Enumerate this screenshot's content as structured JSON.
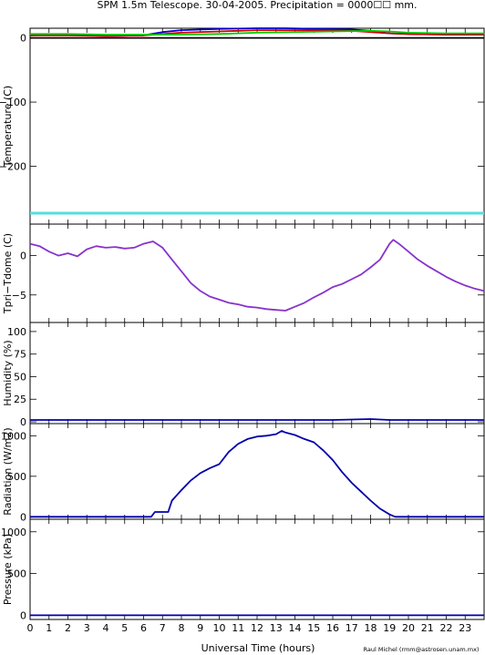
{
  "chart_data": {
    "type": "line",
    "title": "SPM 1.5m Telescope. 30-04-2005. Precipitation = 0000☐☐ mm.",
    "xlabel": "Universal Time (hours)",
    "credit": "Raul Michel (rmm@astrosen.unam.mx)",
    "xlim": [
      0,
      24
    ],
    "x_ticks": [
      "0",
      "1",
      "2",
      "3",
      "4",
      "5",
      "6",
      "7",
      "8",
      "9",
      "10",
      "11",
      "12",
      "13",
      "14",
      "15",
      "16",
      "17",
      "18",
      "19",
      "20",
      "21",
      "22",
      "23"
    ],
    "panels": [
      {
        "id": "temperature",
        "ylabel": "Temperature (C)",
        "ylim": [
          -290,
          15
        ],
        "y_ticks": [
          0,
          -100,
          -200
        ],
        "y_tick_labels": [
          "0",
          "−100",
          "−200"
        ],
        "series": [
          {
            "color": "#0000cc",
            "x": [
              0,
              2,
              4,
              6,
              7,
              8,
              10,
              12,
              13.5,
              15,
              17,
              18,
              19,
              20,
              22,
              24
            ],
            "y": [
              4,
              5,
              3,
              4,
              9,
              12,
              14,
              15,
              15,
              14,
              13,
              11,
              7,
              6,
              5,
              5
            ]
          },
          {
            "color": "#cc0000",
            "x": [
              0,
              2,
              4,
              6,
              7,
              8,
              10,
              12,
              13.5,
              15,
              17,
              18,
              19,
              20,
              22,
              24
            ],
            "y": [
              4,
              4,
              3,
              4,
              6,
              8,
              10,
              12,
              12,
              12,
              11,
              9,
              7,
              6,
              5,
              5
            ]
          },
          {
            "color": "#00cc00",
            "x": [
              0,
              2,
              4,
              6,
              7,
              8,
              10,
              12,
              14,
              16,
              18,
              19,
              20,
              22,
              24
            ],
            "y": [
              6,
              6,
              5,
              5,
              5,
              5,
              6,
              8,
              9,
              10,
              11,
              10,
              8,
              7,
              7
            ]
          },
          {
            "color": "#000000",
            "x": [
              0,
              24
            ],
            "y": [
              0,
              0
            ]
          },
          {
            "color": "#55dddd",
            "x": [
              0,
              24
            ],
            "y": [
              -273,
              -273
            ]
          }
        ]
      },
      {
        "id": "tpri-tdome",
        "ylabel": "Tpri−Tdome (C)",
        "ylim": [
          -8.5,
          4
        ],
        "y_ticks": [
          0,
          -5
        ],
        "y_tick_labels": [
          "0",
          "−5"
        ],
        "series": [
          {
            "color": "#8833cc",
            "x": [
              0,
              0.5,
              1,
              1.5,
              2,
              2.5,
              3,
              3.5,
              4,
              4.5,
              5,
              5.5,
              6,
              6.5,
              7,
              7.5,
              8,
              8.5,
              9,
              9.5,
              10,
              10.5,
              11,
              11.5,
              12,
              12.5,
              13,
              13.5,
              14,
              14.5,
              15,
              15.5,
              16,
              16.5,
              17,
              17.5,
              18,
              18.5,
              19,
              19.2,
              19.5,
              20,
              20.5,
              21,
              21.5,
              22,
              22.5,
              23,
              23.5,
              24
            ],
            "y": [
              1.5,
              1.2,
              0.5,
              0,
              0.3,
              -0.1,
              0.8,
              1.2,
              1.0,
              1.1,
              0.9,
              1.0,
              1.5,
              1.8,
              1.0,
              -0.5,
              -2.0,
              -3.5,
              -4.5,
              -5.2,
              -5.6,
              -6.0,
              -6.2,
              -6.5,
              -6.6,
              -6.8,
              -6.9,
              -7.0,
              -6.5,
              -6.0,
              -5.3,
              -4.7,
              -4.0,
              -3.6,
              -3.0,
              -2.4,
              -1.5,
              -0.5,
              1.5,
              2.0,
              1.5,
              0.5,
              -0.5,
              -1.3,
              -2.0,
              -2.7,
              -3.3,
              -3.8,
              -4.2,
              -4.5
            ]
          }
        ]
      },
      {
        "id": "humidity",
        "ylabel": "Humidity (%)",
        "ylim": [
          -2,
          110
        ],
        "y_ticks": [
          0,
          25,
          50,
          75,
          100
        ],
        "y_tick_labels": [
          "0",
          "25",
          "50",
          "75",
          "100"
        ],
        "series": [
          {
            "color": "#0000aa",
            "x": [
              0,
              4,
              8,
              12,
              16,
              18,
              19,
              20,
              24
            ],
            "y": [
              2,
              2,
              2,
              2,
              2,
              3,
              2,
              2,
              2
            ]
          }
        ]
      },
      {
        "id": "radiation",
        "ylabel": "Radiation (W/m2)",
        "ylim": [
          -30,
          1150
        ],
        "y_ticks": [
          0,
          500,
          1000
        ],
        "y_tick_labels": [
          "0",
          "500",
          "1000"
        ],
        "series": [
          {
            "color": "#0000aa",
            "x": [
              0,
              6.4,
              6.6,
              7.3,
              7.5,
              8.0,
              8.5,
              9.0,
              9.5,
              10.0,
              10.5,
              11.0,
              11.5,
              12.0,
              12.5,
              13.0,
              13.3,
              13.5,
              14.0,
              14.5,
              15.0,
              15.5,
              16.0,
              16.5,
              17.0,
              17.5,
              18.0,
              18.5,
              19.0,
              19.3,
              24
            ],
            "y": [
              0,
              0,
              60,
              60,
              200,
              330,
              450,
              540,
              600,
              650,
              800,
              900,
              960,
              990,
              1000,
              1020,
              1060,
              1040,
              1010,
              960,
              920,
              820,
              700,
              550,
              420,
              310,
              200,
              100,
              30,
              0,
              0
            ]
          }
        ]
      },
      {
        "id": "pressure",
        "ylabel": "Pressure (kPa)",
        "ylim": [
          -50,
          1150
        ],
        "y_ticks": [
          0,
          500,
          1000
        ],
        "y_tick_labels": [
          "0",
          "500",
          "1000"
        ],
        "series": [
          {
            "color": "#0000aa",
            "x": [
              0,
              24
            ],
            "y": [
              0,
              0
            ]
          }
        ]
      }
    ]
  }
}
